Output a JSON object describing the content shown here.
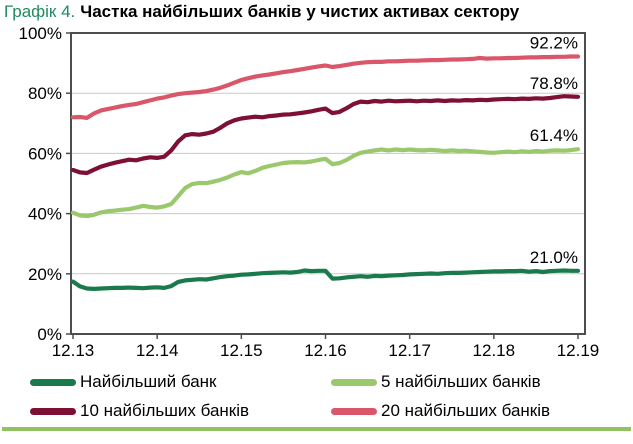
{
  "title": {
    "prefix": "Графік 4.",
    "text": "Частка найбільших банків у чистих активах сектору"
  },
  "accent": {
    "title_green": "#1f8a5f",
    "rule_green": "#90c262",
    "axis_gray": "#4d4d4d",
    "grid_gray": "#c9c9c9"
  },
  "chart_data": {
    "type": "line",
    "title": "Частка найбільших банків у чистих активах сектору",
    "xlabel": "",
    "ylabel": "",
    "ylim": [
      0,
      100
    ],
    "yticks": [
      0,
      20,
      40,
      60,
      80,
      100
    ],
    "ytick_labels": [
      "0%",
      "20%",
      "40%",
      "60%",
      "80%",
      "100%"
    ],
    "x_tick_labels": [
      "12.13",
      "12.14",
      "12.15",
      "12.16",
      "12.17",
      "12.18",
      "12.19"
    ],
    "x_frequency": "monthly",
    "grid": true,
    "legend_position": "bottom",
    "series": [
      {
        "name": "Найбільший банк",
        "slug": "largest-bank",
        "color": "#1a7a4b",
        "end_label": "21.0%",
        "values": [
          17.4,
          15.8,
          15.1,
          15.0,
          15.1,
          15.2,
          15.3,
          15.3,
          15.4,
          15.3,
          15.2,
          15.4,
          15.5,
          15.3,
          15.9,
          17.3,
          17.8,
          18.0,
          18.2,
          18.1,
          18.5,
          18.9,
          19.2,
          19.4,
          19.7,
          19.8,
          20.0,
          20.2,
          20.3,
          20.4,
          20.5,
          20.4,
          20.6,
          21.1,
          20.9,
          21.0,
          21.0,
          18.4,
          18.5,
          18.8,
          19.0,
          19.2,
          19.0,
          19.3,
          19.2,
          19.4,
          19.5,
          19.6,
          19.8,
          19.9,
          20.0,
          20.1,
          20.0,
          20.2,
          20.3,
          20.3,
          20.4,
          20.5,
          20.6,
          20.7,
          20.8,
          20.8,
          20.9,
          20.9,
          21.0,
          20.7,
          20.9,
          20.6,
          20.9,
          21.0,
          21.1,
          21.0,
          21.0
        ]
      },
      {
        "name": "5 найбільших банків",
        "slug": "top-5-banks",
        "color": "#9cc86d",
        "end_label": "61.4%",
        "values": [
          40.3,
          39.4,
          39.2,
          39.6,
          40.4,
          40.8,
          41.0,
          41.3,
          41.5,
          42.0,
          42.6,
          42.2,
          42.0,
          42.4,
          43.2,
          45.8,
          48.5,
          49.8,
          50.2,
          50.1,
          50.6,
          51.2,
          52.0,
          53.0,
          53.8,
          53.4,
          54.2,
          55.2,
          55.8,
          56.3,
          56.8,
          57.0,
          57.1,
          57.0,
          57.3,
          57.8,
          58.2,
          56.4,
          56.8,
          57.8,
          59.2,
          60.2,
          60.6,
          61.0,
          61.3,
          61.0,
          61.3,
          61.1,
          61.3,
          61.1,
          61.0,
          61.2,
          61.0,
          60.8,
          61.0,
          60.8,
          60.9,
          60.7,
          60.5,
          60.3,
          60.2,
          60.4,
          60.6,
          60.4,
          60.7,
          60.5,
          60.8,
          60.6,
          60.9,
          61.0,
          60.9,
          61.1,
          61.4
        ]
      },
      {
        "name": "10 найбільших банків",
        "slug": "top-10-banks",
        "color": "#7d1033",
        "end_label": "78.8%",
        "values": [
          54.5,
          53.7,
          53.5,
          54.6,
          55.6,
          56.3,
          56.9,
          57.4,
          57.9,
          57.7,
          58.3,
          58.7,
          58.5,
          58.9,
          61.0,
          64.0,
          66.0,
          66.4,
          66.2,
          66.6,
          67.2,
          68.5,
          70.0,
          71.0,
          71.6,
          71.9,
          72.2,
          72.0,
          72.4,
          72.6,
          72.9,
          73.0,
          73.3,
          73.6,
          74.0,
          74.5,
          74.9,
          73.4,
          73.8,
          75.0,
          76.4,
          77.2,
          77.0,
          77.4,
          77.2,
          77.5,
          77.3,
          77.4,
          77.5,
          77.3,
          77.5,
          77.4,
          77.6,
          77.4,
          77.6,
          77.5,
          77.7,
          77.6,
          77.8,
          77.7,
          77.9,
          78.0,
          78.1,
          78.0,
          78.2,
          78.1,
          78.3,
          78.2,
          78.4,
          78.7,
          79.0,
          78.9,
          78.8
        ]
      },
      {
        "name": "20 найбільших банків",
        "slug": "top-20-banks",
        "color": "#d9566b",
        "end_label": "92.2%",
        "values": [
          72.0,
          72.1,
          71.8,
          73.3,
          74.3,
          74.8,
          75.2,
          75.7,
          76.1,
          76.4,
          77.0,
          77.6,
          78.2,
          78.6,
          79.2,
          79.7,
          80.0,
          80.2,
          80.4,
          80.7,
          81.2,
          81.8,
          82.6,
          83.5,
          84.4,
          85.0,
          85.5,
          85.9,
          86.2,
          86.6,
          87.0,
          87.3,
          87.7,
          88.1,
          88.5,
          88.9,
          89.2,
          88.7,
          89.0,
          89.4,
          89.8,
          90.1,
          90.3,
          90.4,
          90.4,
          90.6,
          90.6,
          90.7,
          90.8,
          90.8,
          90.9,
          91.0,
          91.0,
          91.1,
          91.2,
          91.2,
          91.3,
          91.4,
          91.7,
          91.5,
          91.6,
          91.6,
          91.7,
          91.7,
          91.8,
          91.9,
          91.9,
          92.0,
          92.0,
          92.1,
          92.1,
          92.2,
          92.2
        ]
      }
    ]
  }
}
